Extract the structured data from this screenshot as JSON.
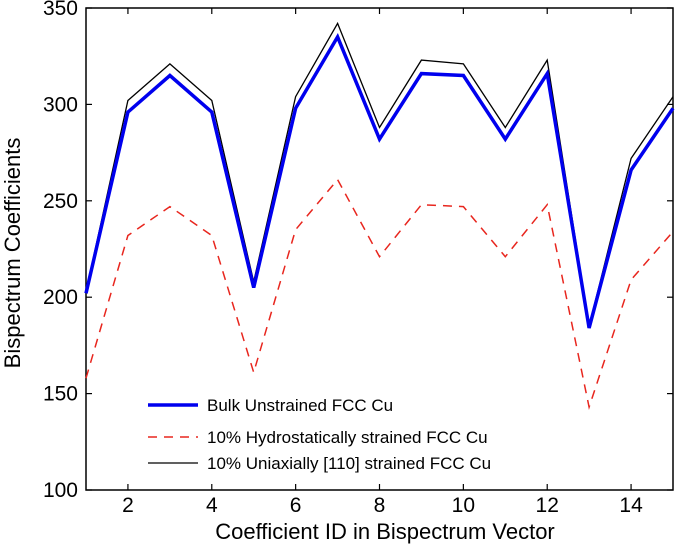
{
  "chart_data": {
    "type": "line",
    "title": "",
    "xlabel": "Coefficient ID in Bispectrum Vector",
    "ylabel": "Bispectrum Coefficients",
    "xlim": [
      1,
      15
    ],
    "ylim": [
      100,
      350
    ],
    "xticks": [
      2,
      4,
      6,
      8,
      10,
      12,
      14
    ],
    "yticks": [
      100,
      150,
      200,
      250,
      300,
      350
    ],
    "grid": false,
    "legend_position": "bottom-left",
    "x": [
      1,
      2,
      3,
      4,
      5,
      6,
      7,
      8,
      9,
      10,
      11,
      12,
      13,
      14,
      15
    ],
    "series": [
      {
        "name": "Bulk Unstrained FCC Cu",
        "color": "#0000ee",
        "style": "solid",
        "weight": "thick",
        "values": [
          202,
          296,
          315,
          296,
          205,
          298,
          335,
          282,
          316,
          315,
          282,
          316,
          184,
          266,
          298
        ]
      },
      {
        "name": "10% Hydrostatically strained FCC Cu",
        "color": "#e8261e",
        "style": "dashed",
        "weight": "normal",
        "values": [
          158,
          232,
          247,
          232,
          161,
          235,
          261,
          221,
          248,
          247,
          221,
          248,
          143,
          209,
          234
        ]
      },
      {
        "name": "10% Uniaxially [110] strained FCC Cu",
        "color": "#000000",
        "style": "solid",
        "weight": "thin",
        "values": [
          203,
          302,
          321,
          302,
          208,
          304,
          342,
          288,
          323,
          321,
          288,
          323,
          185,
          272,
          304
        ]
      }
    ]
  }
}
